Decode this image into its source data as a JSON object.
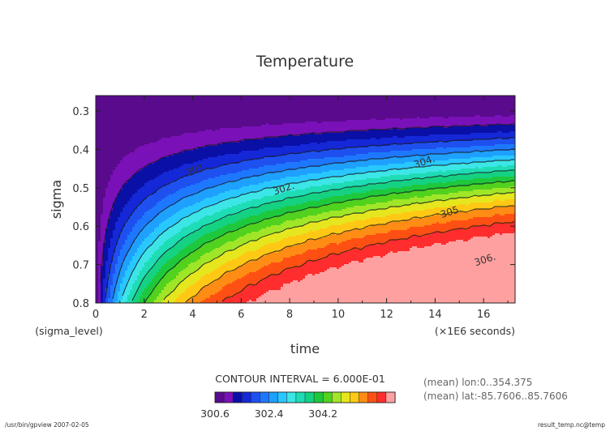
{
  "chart_data": {
    "type": "heatmap",
    "title": "Temperature",
    "xlabel": "time",
    "ylabel": "sigma",
    "x_unit_label": "(×1E6 seconds)",
    "y_unit_label": "(sigma_level)",
    "xlim": [
      0,
      17.3
    ],
    "ylim": [
      0.8,
      0.26
    ],
    "x_ticks": [
      0,
      2,
      4,
      6,
      8,
      10,
      12,
      14,
      16
    ],
    "x_tick_labels": [
      "0",
      "2",
      "4",
      "6",
      "8",
      "10",
      "12",
      "14",
      "16"
    ],
    "y_ticks": [
      0.3,
      0.4,
      0.5,
      0.6,
      0.7,
      0.8
    ],
    "y_tick_labels": [
      "0.3",
      "0.4",
      "0.5",
      "0.6",
      "0.7",
      "0.8"
    ],
    "contour_interval_text": "CONTOUR INTERVAL = 6.000E-01",
    "contour_levels": [
      300.6,
      301.2,
      301.8,
      302.4,
      303.0,
      303.6,
      304.2,
      304.8,
      305.4,
      306.0
    ],
    "colorbar_tick_labels": [
      "300.6",
      "302.4",
      "304.2"
    ],
    "colorbar_colors": [
      "#5a0a8c",
      "#7a10b8",
      "#0a0fa6",
      "#1428d8",
      "#1e50f0",
      "#1e78ff",
      "#1ea0ff",
      "#28c8ff",
      "#3ce6e6",
      "#1edcb4",
      "#14d282",
      "#1ec83c",
      "#50d21e",
      "#a0e628",
      "#e6e61e",
      "#ffc814",
      "#ff8c14",
      "#ff5014",
      "#ff2d2d",
      "#ffa0a0"
    ],
    "contour_labels": [
      {
        "text": "301.",
        "x": 4.2,
        "y": 0.46
      },
      {
        "text": "302.",
        "x": 7.8,
        "y": 0.51
      },
      {
        "text": "304.",
        "x": 13.6,
        "y": 0.44
      },
      {
        "text": "305.",
        "x": 14.7,
        "y": 0.57
      },
      {
        "text": "306.",
        "x": 16.1,
        "y": 0.695
      }
    ]
  },
  "notes": {
    "mean_lon": "(mean) lon:0..354.375",
    "mean_lat": "(mean) lat:-85.7606..85.7606"
  },
  "footer": {
    "left": "/usr/bin/gpview  2007-02-05",
    "right": "result_temp.nc@temp"
  }
}
